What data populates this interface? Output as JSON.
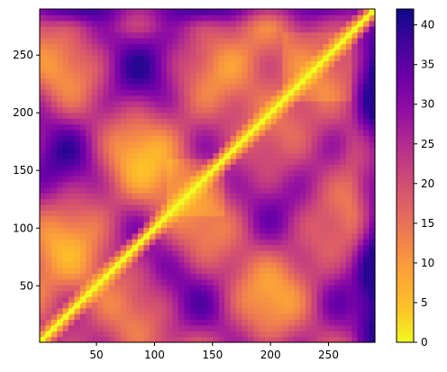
{
  "chart_data": {
    "type": "heatmap",
    "title": "",
    "xlabel": "",
    "ylabel": "",
    "xlim": [
      1,
      290
    ],
    "ylim": [
      1,
      290
    ],
    "x_ticks": [
      50,
      100,
      150,
      200,
      250
    ],
    "y_ticks": [
      50,
      100,
      150,
      200,
      250
    ],
    "colormap": "plasma_r",
    "value_range": [
      0,
      42
    ],
    "colorbar_ticks": [
      0,
      5,
      10,
      15,
      20,
      25,
      30,
      35,
      40
    ],
    "diagonal_value": 0,
    "notes_visible": [],
    "grid": false,
    "legend": "colorbar-right"
  }
}
